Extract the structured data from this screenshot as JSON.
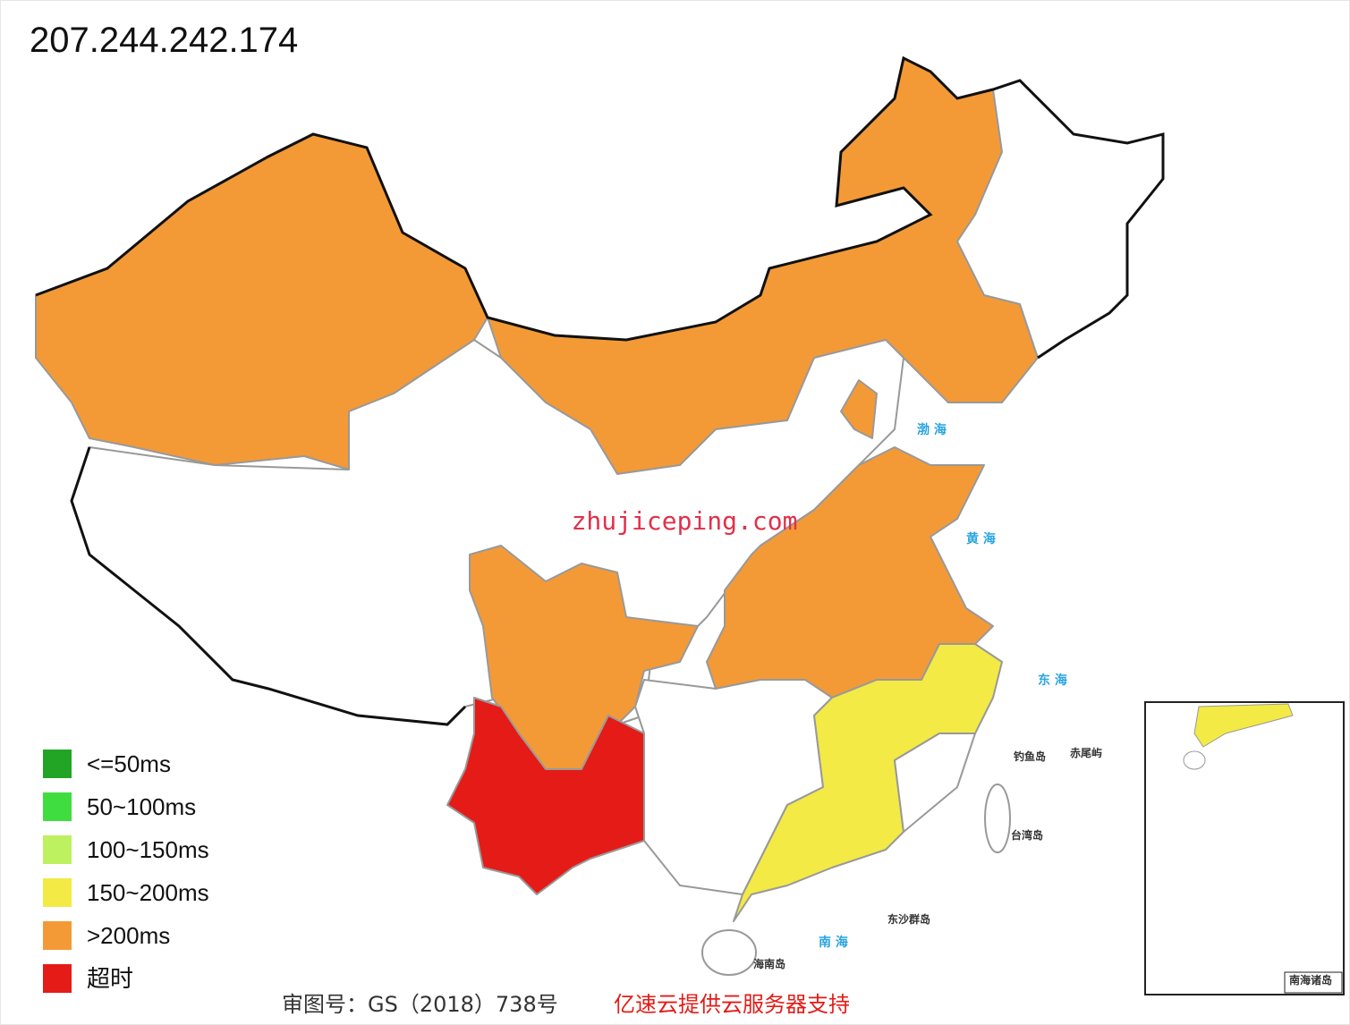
{
  "header": {
    "title": "207.244.242.174"
  },
  "legend": [
    {
      "label": "<=50ms",
      "color": "#22a524"
    },
    {
      "label": "50~100ms",
      "color": "#3fdd3f"
    },
    {
      "label": "100~150ms",
      "color": "#bdf15f"
    },
    {
      "label": "150~200ms",
      "color": "#f3ea45"
    },
    {
      "label": ">200ms",
      "color": "#f39a37"
    },
    {
      "label": "超时",
      "color": "#e41b17"
    }
  ],
  "watermark": "zhujiceping.com",
  "map_labels": {
    "bohai": "渤 海",
    "huanghai": "黄 海",
    "donghai": "东 海",
    "nanhai": "南 海",
    "taiwan": "台湾岛",
    "hainan": "海南岛",
    "diaoyu": "钓鱼岛",
    "chiwei": "赤尾屿",
    "dongsha": "东沙群岛",
    "nanhai_islands": "南海诸岛"
  },
  "footer": {
    "approval": "审图号：GS（2018）738号",
    "sponsor": "亿速云提供云服务器支持"
  }
}
